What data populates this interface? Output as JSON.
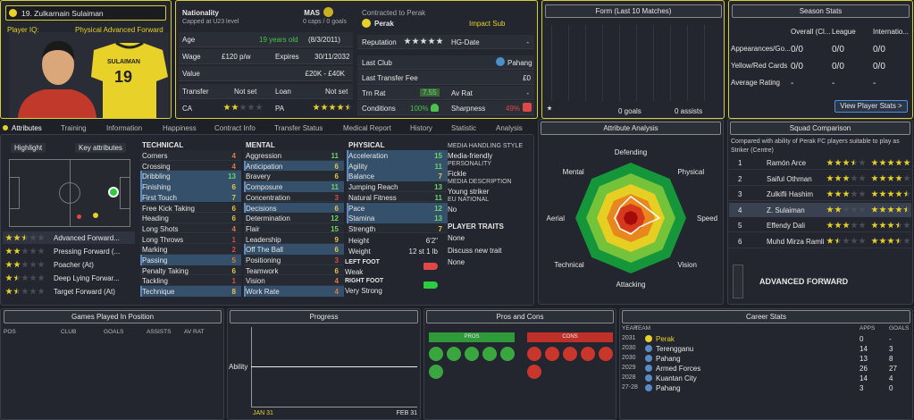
{
  "player": {
    "name": "19. Zulkarnain Sulaiman",
    "iq_label": "Player IQ:",
    "role": "Physical Advanced Forward",
    "shirt_name": "SULAIMAN",
    "shirt_number": "19"
  },
  "info": {
    "nationality_label": "Nationality",
    "nationality": "MAS",
    "capped": "Capped at U23 level",
    "caps": "0 caps / 0 goals",
    "age_label": "Age",
    "age": "19 years old",
    "dob": "(8/3/2011)",
    "wage_label": "Wage",
    "wage": "£120 p/w",
    "expires_label": "Expires",
    "expires": "30/11/2032",
    "value_label": "Value",
    "value": "£20K - £40K",
    "transfer_label": "Transfer",
    "transfer": "Not set",
    "loan_label": "Loan",
    "loan": "Not set",
    "ca_label": "CA",
    "ca_stars": 2,
    "pa_label": "PA",
    "pa_stars": 4.5
  },
  "contract": {
    "contracted": "Contracted to Perak",
    "club": "Perak",
    "status": "Impact Sub",
    "reputation_label": "Reputation",
    "reputation_stars": 5,
    "hg_label": "HG-Date",
    "hg": "-",
    "last_club_label": "Last Club",
    "last_club": "Pahang",
    "fee_label": "Last Transfer Fee",
    "fee": "£0",
    "trn_rat_label": "Trn Rat",
    "trn_rat": "7.55",
    "av_rat_label": "Av Rat",
    "av_rat": "-",
    "conditions_label": "Conditions",
    "conditions": "100%",
    "sharpness_label": "Sharpness",
    "sharpness": "49%"
  },
  "form": {
    "title": "Form (Last 10 Matches)",
    "goals": "0 goals",
    "assists": "0 assists"
  },
  "season": {
    "title": "Season Stats",
    "headers": [
      "Overall (Cl...",
      "League",
      "Internatio..."
    ],
    "rows": [
      [
        "Appearances/Go...",
        "0/0",
        "0/0",
        "0/0"
      ],
      [
        "Yellow/Red Cards",
        "0/0",
        "0/0",
        "0/0"
      ],
      [
        "Average Rating",
        "-",
        "-",
        "-"
      ]
    ],
    "button": "View Player Stats >"
  },
  "tabs": [
    "Attributes",
    "Training",
    "Information",
    "Happiness",
    "Contract Info",
    "Transfer Status",
    "Medical Report",
    "History",
    "Statistic",
    "Analysis"
  ],
  "attributes": {
    "highlight": "Highlight",
    "key_attributes": "Key attributes",
    "roles": [
      {
        "name": "Advanced Forward...",
        "stars": 2.5
      },
      {
        "name": "Pressing Forward (...",
        "stars": 2
      },
      {
        "name": "Poacher (At)",
        "stars": 2
      },
      {
        "name": "Deep Lying Forwar...",
        "stars": 1.5
      },
      {
        "name": "Target Forward (At)",
        "stars": 1.5
      }
    ],
    "technical": {
      "title": "TECHNICAL",
      "items": [
        {
          "name": "Corners",
          "value": 4
        },
        {
          "name": "Crossing",
          "value": 4
        },
        {
          "name": "Dribbling",
          "value": 13,
          "key": true
        },
        {
          "name": "Finishing",
          "value": 6,
          "key": true
        },
        {
          "name": "First Touch",
          "value": 7,
          "key": true
        },
        {
          "name": "Free Kick Taking",
          "value": 6
        },
        {
          "name": "Heading",
          "value": 6
        },
        {
          "name": "Long Shots",
          "value": 4
        },
        {
          "name": "Long Throws",
          "value": 1
        },
        {
          "name": "Marking",
          "value": 2
        },
        {
          "name": "Passing",
          "value": 5,
          "key": true
        },
        {
          "name": "Penalty Taking",
          "value": 6
        },
        {
          "name": "Tackling",
          "value": 1
        },
        {
          "name": "Technique",
          "value": 8,
          "key": true
        }
      ]
    },
    "mental": {
      "title": "MENTAL",
      "items": [
        {
          "name": "Aggression",
          "value": 11
        },
        {
          "name": "Anticipation",
          "value": 6,
          "key": true
        },
        {
          "name": "Bravery",
          "value": 6
        },
        {
          "name": "Composure",
          "value": 11,
          "key": true
        },
        {
          "name": "Concentration",
          "value": 3
        },
        {
          "name": "Decisions",
          "value": 6,
          "key": true
        },
        {
          "name": "Determination",
          "value": 12
        },
        {
          "name": "Flair",
          "value": 15
        },
        {
          "name": "Leadership",
          "value": 9
        },
        {
          "name": "Off The Ball",
          "value": 6,
          "key": true
        },
        {
          "name": "Positioning",
          "value": 3
        },
        {
          "name": "Teamwork",
          "value": 6
        },
        {
          "name": "Vision",
          "value": 4
        },
        {
          "name": "Work Rate",
          "value": 4,
          "key": true
        }
      ]
    },
    "physical": {
      "title": "PHYSICAL",
      "items": [
        {
          "name": "Acceleration",
          "value": 15,
          "key": true
        },
        {
          "name": "Agility",
          "value": 11,
          "key": true
        },
        {
          "name": "Balance",
          "value": 7,
          "key": true
        },
        {
          "name": "Jumping Reach",
          "value": 13
        },
        {
          "name": "Natural Fitness",
          "value": 11
        },
        {
          "name": "Pace",
          "value": 12,
          "key": true
        },
        {
          "name": "Stamina",
          "value": 13,
          "key": true
        },
        {
          "name": "Strength",
          "value": 7
        }
      ],
      "height_label": "Height",
      "height": "6'2\"",
      "weight_label": "Weight",
      "weight": "12 st 1 lb",
      "left_foot_label": "LEFT FOOT",
      "left_foot": "Weak",
      "right_foot_label": "RIGHT FOOT",
      "right_foot": "Very Strong"
    },
    "media": [
      [
        "MEDIA HANDLING STYLE",
        "Media-friendly"
      ],
      [
        "PERSONALITY",
        "Fickle"
      ],
      [
        "MEDIA DESCRIPTION",
        "Young striker"
      ],
      [
        "EU NATIONAL",
        "No"
      ]
    ],
    "traits_label": "PLAYER TRAITS",
    "traits": "None",
    "discuss": "Discuss new trait",
    "discuss_value": "None"
  },
  "analysis": {
    "title": "Attribute Analysis",
    "labels": [
      "Defending",
      "Physical",
      "Speed",
      "Vision",
      "Attacking",
      "Technical",
      "Aerial",
      "Mental"
    ]
  },
  "squad": {
    "title": "Squad Comparison",
    "description": [
      "Compared with ability of Perak FC players suitable to play as",
      "Striker (Centre)"
    ],
    "rows": [
      {
        "rank": "1",
        "name": "Ramón Arce",
        "current": 3.5,
        "potential": 5
      },
      {
        "rank": "2",
        "name": "Saiful Othman",
        "current": 3,
        "potential": 4
      },
      {
        "rank": "3",
        "name": "Zulkifli Hashim",
        "current": 3,
        "potential": 4.5
      },
      {
        "rank": "4",
        "name": "Z. Sulaiman",
        "current": 2,
        "potential": 4.5
      },
      {
        "rank": "5",
        "name": "Effendy Dali",
        "current": 3,
        "potential": 3.5
      },
      {
        "rank": "6",
        "name": "Muhd Mirza Ramli",
        "current": 1.5,
        "potential": 3.5
      }
    ],
    "position": "ADVANCED FORWARD"
  },
  "games": {
    "title": "Games Played In Position",
    "headers": [
      "POS",
      "CLUB",
      "GOALS",
      "ASSISTS",
      "AV RAT"
    ]
  },
  "progress": {
    "title": "Progress",
    "axis_label": "Ability",
    "start": "JAN 31",
    "end": "FEB 31"
  },
  "pros_cons": {
    "title": "Pros and Cons",
    "pros": "PROS",
    "cons": "CONS"
  },
  "career": {
    "title": "Career Stats",
    "headers": [
      "YEAR",
      "TEAM",
      "APPS",
      "GOALS"
    ],
    "rows": [
      [
        "2031",
        "Perak",
        "0",
        "-"
      ],
      [
        "2030",
        "Terengganu",
        "14",
        "3"
      ],
      [
        "2030",
        "Pahang",
        "13",
        "8"
      ],
      [
        "2029",
        "Armed Forces",
        "26",
        "27"
      ],
      [
        "2028",
        "Kuantan City",
        "14",
        "4"
      ],
      [
        "27-28",
        "Pahang",
        "3",
        "0"
      ]
    ]
  }
}
